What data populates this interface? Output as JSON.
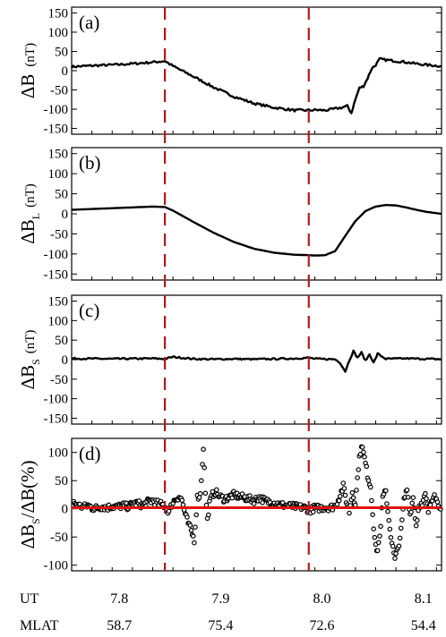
{
  "colors": {
    "trace": "#000000",
    "event_marker": "#b21a1a",
    "fit_line": "#e01010",
    "frame": "#000000"
  },
  "chart_data": [
    {
      "type": "line",
      "panel_label": "(a)",
      "ylabel_main": "ΔB",
      "ylabel_sub": "",
      "ylabel_unit": "(nT)",
      "ylim": [
        -165,
        165
      ],
      "yticks": [
        -150,
        -100,
        -50,
        0,
        50,
        100,
        150
      ],
      "ytick_labels": [
        "-150",
        "-100",
        "-50",
        "0",
        "50",
        "100",
        "150"
      ],
      "series": [
        {
          "style": "line",
          "noise": 3,
          "x": [
            7.76,
            7.78,
            7.8,
            7.82,
            7.84,
            7.852,
            7.86,
            7.88,
            7.9,
            7.92,
            7.94,
            7.96,
            7.98,
            7.994,
            8.0,
            8.01,
            8.018,
            8.026,
            8.032,
            8.036,
            8.04,
            8.044,
            8.048,
            8.052,
            8.056,
            8.06,
            8.064,
            8.07,
            8.08,
            8.09,
            8.1,
            8.11,
            8.125
          ],
          "y": [
            10,
            13,
            15,
            18,
            22,
            25,
            12,
            -15,
            -43,
            -67,
            -85,
            -96,
            -103,
            -103,
            -102,
            -103,
            -100,
            -96,
            -92,
            -110,
            -75,
            -45,
            -40,
            -20,
            5,
            15,
            30,
            28,
            25,
            22,
            18,
            15,
            12
          ]
        }
      ]
    },
    {
      "type": "line",
      "panel_label": "(b)",
      "ylabel_main": "ΔB",
      "ylabel_sub": "L",
      "ylabel_unit": "(nT)",
      "ylim": [
        -165,
        165
      ],
      "yticks": [
        -150,
        -100,
        -50,
        0,
        50,
        100,
        150
      ],
      "ytick_labels": [
        "-150",
        "-100",
        "-50",
        "0",
        "50",
        "100",
        "150"
      ],
      "series": [
        {
          "style": "line",
          "noise": 0,
          "x": [
            7.76,
            7.78,
            7.8,
            7.82,
            7.84,
            7.852,
            7.86,
            7.88,
            7.9,
            7.92,
            7.94,
            7.96,
            7.98,
            7.994,
            8.0,
            8.01,
            8.02,
            8.03,
            8.04,
            8.05,
            8.06,
            8.07,
            8.08,
            8.09,
            8.1,
            8.11,
            8.125
          ],
          "y": [
            10,
            12,
            14,
            16,
            18,
            17,
            8,
            -20,
            -47,
            -70,
            -87,
            -97,
            -102,
            -103,
            -104,
            -103,
            -93,
            -55,
            -18,
            7,
            18,
            22,
            21,
            16,
            10,
            5,
            0
          ]
        }
      ]
    },
    {
      "type": "line",
      "panel_label": "(c)",
      "ylabel_main": "ΔB",
      "ylabel_sub": "S",
      "ylabel_unit": "(nT)",
      "ylim": [
        -165,
        165
      ],
      "yticks": [
        -150,
        -100,
        -50,
        0,
        50,
        100,
        150
      ],
      "ytick_labels": [
        "-150",
        "-100",
        "-50",
        "0",
        "50",
        "100",
        "150"
      ],
      "series": [
        {
          "style": "line",
          "noise": 2,
          "x": [
            7.76,
            7.8,
            7.84,
            7.852,
            7.86,
            7.88,
            7.9,
            7.92,
            7.94,
            7.96,
            7.98,
            7.994,
            8.0,
            8.02,
            8.025,
            8.03,
            8.034,
            8.038,
            8.042,
            8.046,
            8.05,
            8.054,
            8.058,
            8.062,
            8.07,
            8.09,
            8.11,
            8.125
          ],
          "y": [
            3,
            2,
            3,
            2,
            7,
            2,
            1,
            2,
            1,
            2,
            3,
            5,
            2,
            1,
            -8,
            -30,
            -2,
            22,
            5,
            18,
            -3,
            14,
            -8,
            15,
            2,
            3,
            2,
            1
          ]
        }
      ]
    },
    {
      "type": "scatter",
      "panel_label": "(d)",
      "ylabel_main": "ΔB",
      "ylabel_sub": "S",
      "ylabel_unit": "/ΔB(%)",
      "ylim": [
        -110,
        125
      ],
      "yticks": [
        -100,
        -50,
        0,
        50,
        100
      ],
      "ytick_labels": [
        "-100",
        "-50",
        "0",
        "50",
        "100"
      ],
      "series": [
        {
          "style": "scatter",
          "x": [
            7.762,
            7.765,
            7.768,
            7.772,
            7.776,
            7.78,
            7.785,
            7.79,
            7.795,
            7.8,
            7.805,
            7.81,
            7.815,
            7.82,
            7.825,
            7.83,
            7.835,
            7.84,
            7.844,
            7.848,
            7.852,
            7.856,
            7.86,
            7.863,
            7.866,
            7.869,
            7.872,
            7.875,
            7.878,
            7.881,
            7.884,
            7.887,
            7.89,
            7.892,
            7.894,
            7.896,
            7.899,
            7.902,
            7.906,
            7.91,
            7.915,
            7.92,
            7.925,
            7.93,
            7.935,
            7.94,
            7.945,
            7.95,
            7.955,
            7.96,
            7.965,
            7.97,
            7.975,
            7.98,
            7.985,
            7.99,
            7.995,
            8.0,
            8.005,
            8.01,
            8.015,
            8.02,
            8.024,
            8.028,
            8.031,
            8.034,
            8.037,
            8.04,
            8.043,
            8.046,
            8.049,
            8.052,
            8.055,
            8.058,
            8.061,
            8.064,
            8.067,
            8.07,
            8.073,
            8.076,
            8.079,
            8.082,
            8.085,
            8.088,
            8.091,
            8.094,
            8.097,
            8.1,
            8.103,
            8.106,
            8.109,
            8.112,
            8.115,
            8.118,
            8.121,
            8.124
          ],
          "y": [
            10,
            8,
            5,
            3,
            6,
            2,
            1,
            4,
            2,
            5,
            3,
            6,
            4,
            8,
            10,
            6,
            12,
            15,
            10,
            8,
            5,
            -5,
            12,
            18,
            22,
            15,
            -10,
            -25,
            -40,
            -55,
            20,
            25,
            110,
            30,
            -20,
            10,
            25,
            30,
            22,
            18,
            20,
            25,
            22,
            20,
            18,
            15,
            20,
            15,
            12,
            10,
            8,
            6,
            5,
            4,
            3,
            2,
            -3,
            2,
            1,
            3,
            2,
            5,
            20,
            40,
            15,
            -5,
            30,
            10,
            75,
            115,
            90,
            60,
            40,
            -30,
            -80,
            -50,
            20,
            30,
            -20,
            -60,
            -90,
            -70,
            -40,
            15,
            35,
            -10,
            20,
            -30,
            10,
            5,
            25,
            -5,
            15,
            30,
            10,
            5
          ],
          "noise": 3
        },
        {
          "style": "line",
          "name": "",
          "x": [
            7.76,
            8.125
          ],
          "y": [
            2,
            2
          ],
          "noise": 0
        }
      ]
    }
  ],
  "x_axis": {
    "xlim": [
      7.76,
      8.125
    ],
    "event_lines_x": [
      7.852,
      7.994
    ],
    "ut_label": "UT",
    "mlat_label": "MLAT",
    "ut_ticks": [
      {
        "x": 7.8,
        "label": "7.8"
      },
      {
        "x": 7.9,
        "label": "7.9"
      },
      {
        "x": 8.0,
        "label": "8.0"
      },
      {
        "x": 8.1,
        "label": "8.1"
      }
    ],
    "mlat_ticks": [
      {
        "x": 7.8,
        "label": "58.7"
      },
      {
        "x": 7.9,
        "label": "75.4"
      },
      {
        "x": 8.0,
        "label": "72.6"
      },
      {
        "x": 8.1,
        "label": "54.4"
      }
    ]
  }
}
